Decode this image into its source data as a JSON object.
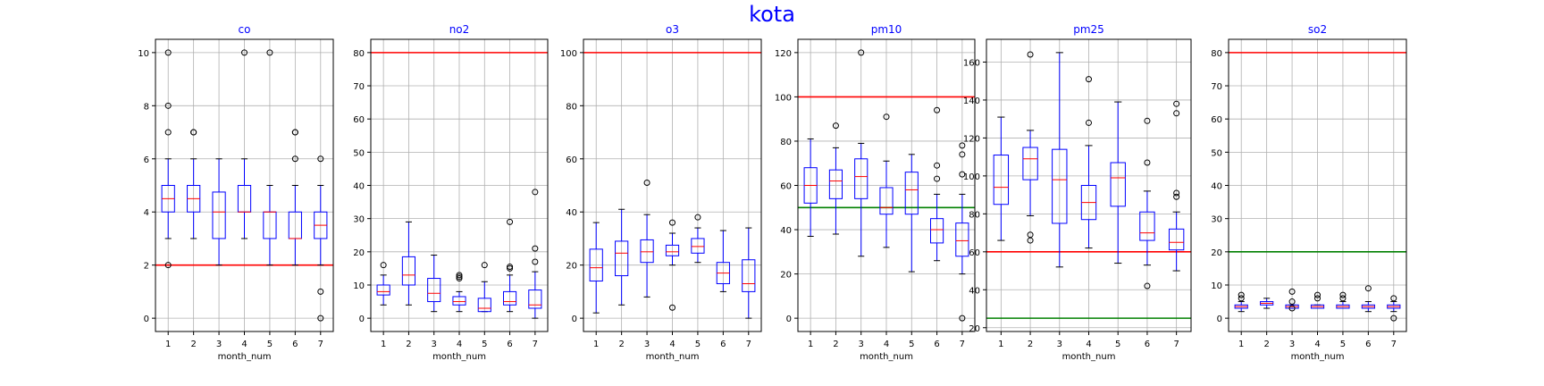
{
  "figure_title": "kota",
  "chart_data": [
    {
      "type": "box",
      "title": "co",
      "xlabel": "month_num",
      "categories": [
        "1",
        "2",
        "3",
        "4",
        "5",
        "6",
        "7"
      ],
      "ylim": [
        -0.5,
        10.5
      ],
      "yticks": [
        0,
        2,
        4,
        6,
        8,
        10
      ],
      "grid": true,
      "hlines": [
        {
          "y": 2,
          "color": "#ff0000"
        }
      ],
      "boxes": [
        {
          "whislo": 3,
          "q1": 4,
          "med": 4.5,
          "q3": 5,
          "whishi": 6,
          "fliers": [
            2,
            7,
            8,
            10
          ]
        },
        {
          "whislo": 3,
          "q1": 4,
          "med": 4.5,
          "q3": 5,
          "whishi": 6,
          "fliers": [
            7,
            7
          ]
        },
        {
          "whislo": 2,
          "q1": 3,
          "med": 4,
          "q3": 4.75,
          "whishi": 6,
          "fliers": []
        },
        {
          "whislo": 3,
          "q1": 4,
          "med": 4,
          "q3": 5,
          "whishi": 6,
          "fliers": [
            10
          ]
        },
        {
          "whislo": 2,
          "q1": 3,
          "med": 4,
          "q3": 4,
          "whishi": 5,
          "fliers": [
            10
          ]
        },
        {
          "whislo": 2,
          "q1": 3,
          "med": 3,
          "q3": 4,
          "whishi": 5,
          "fliers": [
            6,
            7,
            7
          ]
        },
        {
          "whislo": 2,
          "q1": 3,
          "med": 3.5,
          "q3": 4,
          "whishi": 5,
          "fliers": [
            0,
            1,
            6
          ]
        }
      ]
    },
    {
      "type": "box",
      "title": "no2",
      "xlabel": "month_num",
      "categories": [
        "1",
        "2",
        "3",
        "4",
        "5",
        "6",
        "7"
      ],
      "ylim": [
        -4,
        84
      ],
      "yticks": [
        0,
        10,
        20,
        30,
        40,
        50,
        60,
        70,
        80
      ],
      "grid": true,
      "hlines": [
        {
          "y": 80,
          "color": "#ff0000"
        }
      ],
      "boxes": [
        {
          "whislo": 4,
          "q1": 7,
          "med": 8,
          "q3": 10,
          "whishi": 13,
          "fliers": [
            16
          ]
        },
        {
          "whislo": 4,
          "q1": 10,
          "med": 13,
          "q3": 18.5,
          "whishi": 29,
          "fliers": []
        },
        {
          "whislo": 2,
          "q1": 5,
          "med": 7.5,
          "q3": 12,
          "whishi": 19,
          "fliers": []
        },
        {
          "whislo": 2,
          "q1": 4,
          "med": 5,
          "q3": 6.5,
          "whishi": 8,
          "fliers": [
            12,
            12.5,
            13
          ]
        },
        {
          "whislo": 2,
          "q1": 2,
          "med": 3,
          "q3": 6,
          "whishi": 11,
          "fliers": [
            16
          ]
        },
        {
          "whislo": 2,
          "q1": 4,
          "med": 5,
          "q3": 8,
          "whishi": 13,
          "fliers": [
            15,
            15.5,
            29
          ]
        },
        {
          "whislo": 0,
          "q1": 3,
          "med": 4,
          "q3": 8.5,
          "whishi": 14,
          "fliers": [
            17,
            21,
            38
          ]
        }
      ]
    },
    {
      "type": "box",
      "title": "o3",
      "xlabel": "month_num",
      "categories": [
        "1",
        "2",
        "3",
        "4",
        "5",
        "6",
        "7"
      ],
      "ylim": [
        -5,
        105
      ],
      "yticks": [
        0,
        20,
        40,
        60,
        80,
        100
      ],
      "grid": true,
      "hlines": [
        {
          "y": 100,
          "color": "#ff0000"
        }
      ],
      "boxes": [
        {
          "whislo": 2,
          "q1": 14,
          "med": 19,
          "q3": 26,
          "whishi": 36,
          "fliers": []
        },
        {
          "whislo": 5,
          "q1": 16,
          "med": 24.5,
          "q3": 29,
          "whishi": 41,
          "fliers": []
        },
        {
          "whislo": 8,
          "q1": 21,
          "med": 25,
          "q3": 29.5,
          "whishi": 39,
          "fliers": [
            51
          ]
        },
        {
          "whislo": 20,
          "q1": 23.5,
          "med": 25,
          "q3": 27.5,
          "whishi": 32,
          "fliers": [
            4,
            36
          ]
        },
        {
          "whislo": 21,
          "q1": 24.5,
          "med": 27,
          "q3": 30,
          "whishi": 34,
          "fliers": [
            38
          ]
        },
        {
          "whislo": 10,
          "q1": 13,
          "med": 17,
          "q3": 21,
          "whishi": 33,
          "fliers": []
        },
        {
          "whislo": 0,
          "q1": 10,
          "med": 13,
          "q3": 22,
          "whishi": 34,
          "fliers": []
        }
      ]
    },
    {
      "type": "box",
      "title": "pm10",
      "xlabel": "month_num",
      "categories": [
        "1",
        "2",
        "3",
        "4",
        "5",
        "6",
        "7"
      ],
      "ylim": [
        -6,
        126
      ],
      "yticks": [
        0,
        20,
        40,
        60,
        80,
        100,
        120
      ],
      "grid": true,
      "hlines": [
        {
          "y": 100,
          "color": "#ff0000"
        },
        {
          "y": 50,
          "color": "#008000"
        }
      ],
      "boxes": [
        {
          "whislo": 37,
          "q1": 52,
          "med": 60,
          "q3": 68,
          "whishi": 81,
          "fliers": []
        },
        {
          "whislo": 38,
          "q1": 54,
          "med": 62,
          "q3": 67,
          "whishi": 77,
          "fliers": [
            87
          ]
        },
        {
          "whislo": 28,
          "q1": 54,
          "med": 64,
          "q3": 72,
          "whishi": 79,
          "fliers": [
            120
          ]
        },
        {
          "whislo": 32,
          "q1": 47,
          "med": 50,
          "q3": 59,
          "whishi": 71,
          "fliers": [
            91
          ]
        },
        {
          "whislo": 21,
          "q1": 47,
          "med": 58,
          "q3": 66,
          "whishi": 74,
          "fliers": []
        },
        {
          "whislo": 26,
          "q1": 34,
          "med": 40,
          "q3": 45,
          "whishi": 56,
          "fliers": [
            63,
            69,
            94
          ]
        },
        {
          "whislo": 20,
          "q1": 28,
          "med": 35,
          "q3": 43,
          "whishi": 56,
          "fliers": [
            0,
            65,
            74,
            78
          ]
        }
      ]
    },
    {
      "type": "box",
      "title": "pm25",
      "xlabel": "month_num",
      "categories": [
        "1",
        "2",
        "3",
        "4",
        "5",
        "6",
        "7"
      ],
      "ylim": [
        18,
        172
      ],
      "yticks": [
        20,
        40,
        60,
        80,
        100,
        120,
        140,
        160
      ],
      "grid": true,
      "hlines": [
        {
          "y": 60,
          "color": "#ff0000"
        },
        {
          "y": 25,
          "color": "#008000"
        }
      ],
      "boxes": [
        {
          "whislo": 66,
          "q1": 85,
          "med": 94,
          "q3": 111,
          "whishi": 131,
          "fliers": []
        },
        {
          "whislo": 79,
          "q1": 98,
          "med": 109,
          "q3": 115,
          "whishi": 124,
          "fliers": [
            66,
            69,
            164
          ]
        },
        {
          "whislo": 52,
          "q1": 75,
          "med": 98,
          "q3": 114,
          "whishi": 165,
          "fliers": []
        },
        {
          "whislo": 62,
          "q1": 77,
          "med": 86,
          "q3": 95,
          "whishi": 116,
          "fliers": [
            128,
            151
          ]
        },
        {
          "whislo": 54,
          "q1": 84,
          "med": 99,
          "q3": 107,
          "whishi": 139,
          "fliers": []
        },
        {
          "whislo": 53,
          "q1": 66,
          "med": 70,
          "q3": 81,
          "whishi": 92,
          "fliers": [
            42,
            107,
            129
          ]
        },
        {
          "whislo": 50,
          "q1": 61,
          "med": 65,
          "q3": 72,
          "whishi": 81,
          "fliers": [
            89,
            91,
            133,
            138
          ]
        }
      ]
    },
    {
      "type": "box",
      "title": "so2",
      "xlabel": "month_num",
      "categories": [
        "1",
        "2",
        "3",
        "4",
        "5",
        "6",
        "7"
      ],
      "ylim": [
        -4,
        84
      ],
      "yticks": [
        0,
        10,
        20,
        30,
        40,
        50,
        60,
        70,
        80
      ],
      "grid": true,
      "hlines": [
        {
          "y": 80,
          "color": "#ff0000"
        },
        {
          "y": 20,
          "color": "#008000"
        }
      ],
      "boxes": [
        {
          "whislo": 2,
          "q1": 3,
          "med": 3.5,
          "q3": 4,
          "whishi": 5,
          "fliers": [
            6,
            7
          ]
        },
        {
          "whislo": 3,
          "q1": 4,
          "med": 4.5,
          "q3": 5,
          "whishi": 6,
          "fliers": []
        },
        {
          "whislo": 3,
          "q1": 3,
          "med": 3.5,
          "q3": 4,
          "whishi": 4,
          "fliers": [
            3,
            5,
            8
          ]
        },
        {
          "whislo": 3,
          "q1": 3,
          "med": 3.5,
          "q3": 4,
          "whishi": 4,
          "fliers": [
            6,
            7
          ]
        },
        {
          "whislo": 3,
          "q1": 3,
          "med": 3.5,
          "q3": 4,
          "whishi": 5,
          "fliers": [
            6,
            7
          ]
        },
        {
          "whislo": 2,
          "q1": 3,
          "med": 3.5,
          "q3": 4,
          "whishi": 5,
          "fliers": [
            9
          ]
        },
        {
          "whislo": 2,
          "q1": 3,
          "med": 3.5,
          "q3": 4,
          "whishi": 5,
          "fliers": [
            0,
            6
          ]
        }
      ]
    }
  ]
}
